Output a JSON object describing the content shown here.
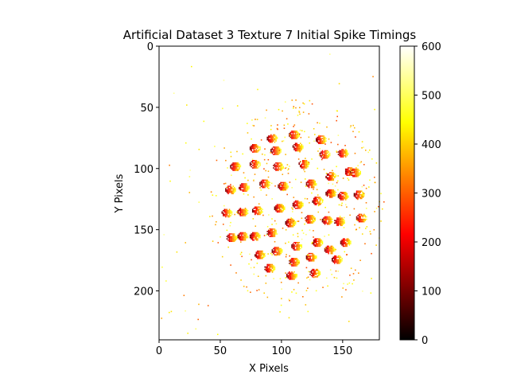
{
  "chart_data": {
    "type": "heatmap",
    "title": "Artificial Dataset 3 Texture 7 Initial Spike Timings",
    "xlabel": "X Pixels",
    "ylabel": "Y Pixels",
    "xlim": [
      0,
      180
    ],
    "ylim": [
      240,
      0
    ],
    "xticks": [
      0,
      50,
      100,
      150
    ],
    "yticks": [
      0,
      50,
      100,
      150,
      200
    ],
    "colorbar": {
      "colormap": "hot",
      "range": [
        0,
        600
      ],
      "ticks": [
        0,
        100,
        200,
        300,
        400,
        500,
        600
      ]
    },
    "grid": false,
    "clusters_xy": [
      [
        110,
        72
      ],
      [
        132,
        76
      ],
      [
        92,
        75
      ],
      [
        78,
        83
      ],
      [
        95,
        85
      ],
      [
        113,
        82
      ],
      [
        150,
        87
      ],
      [
        135,
        88
      ],
      [
        118,
        96
      ],
      [
        78,
        96
      ],
      [
        97,
        98
      ],
      [
        62,
        98
      ],
      [
        155,
        102
      ],
      [
        140,
        106
      ],
      [
        160,
        103
      ],
      [
        124,
        112
      ],
      [
        101,
        114
      ],
      [
        86,
        112
      ],
      [
        69,
        115
      ],
      [
        58,
        117
      ],
      [
        140,
        120
      ],
      [
        163,
        121
      ],
      [
        150,
        122
      ],
      [
        129,
        126
      ],
      [
        113,
        129
      ],
      [
        98,
        132
      ],
      [
        80,
        134
      ],
      [
        68,
        135
      ],
      [
        55,
        136
      ],
      [
        165,
        140
      ],
      [
        147,
        143
      ],
      [
        137,
        142
      ],
      [
        123,
        141
      ],
      [
        107,
        144
      ],
      [
        92,
        152
      ],
      [
        78,
        155
      ],
      [
        68,
        155
      ],
      [
        59,
        156
      ],
      [
        152,
        160
      ],
      [
        129,
        160
      ],
      [
        112,
        163
      ],
      [
        139,
        166
      ],
      [
        96,
        167
      ],
      [
        82,
        170
      ],
      [
        124,
        172
      ],
      [
        110,
        176
      ],
      [
        145,
        174
      ],
      [
        90,
        181
      ],
      [
        127,
        185
      ],
      [
        108,
        187
      ]
    ]
  }
}
